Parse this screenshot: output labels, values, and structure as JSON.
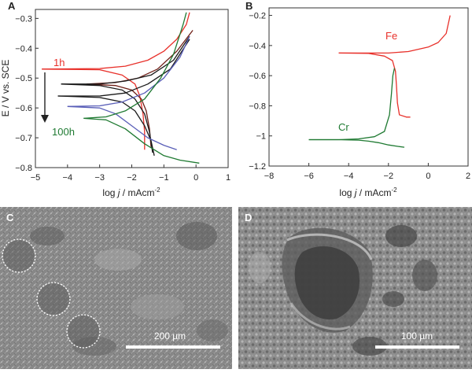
{
  "colors": {
    "red": "#e8302a",
    "black": "#1a1a1a",
    "dark_red": "#6e1e16",
    "blue": "#5a5fb8",
    "green": "#1f7a32",
    "green_bright": "#2e9a3c",
    "sem_bg": "#8a8a8a"
  },
  "chart_data": [
    {
      "panel": "A",
      "type": "line",
      "xlabel_prefix": "log ",
      "xlabel_var": "j",
      "xlabel_suffix": " / mAcm",
      "xlabel_sup": "-2",
      "ylabel": "E / V vs. SCE",
      "xlim": [
        -5,
        1
      ],
      "ylim": [
        -0.8,
        -0.27
      ],
      "xticks": [
        -5,
        -4,
        -3,
        -2,
        -1,
        0,
        1
      ],
      "yticks": [
        -0.8,
        -0.7,
        -0.6,
        -0.5,
        -0.4,
        -0.3
      ],
      "annotations": {
        "start": "1h",
        "end": "100h"
      },
      "series": [
        {
          "color": "red",
          "anodic": [
            [
              -4.8,
              -0.47
            ],
            [
              -3,
              -0.468
            ],
            [
              -2.2,
              -0.46
            ],
            [
              -1.5,
              -0.44
            ],
            [
              -1,
              -0.41
            ],
            [
              -0.6,
              -0.37
            ],
            [
              -0.3,
              -0.32
            ],
            [
              -0.2,
              -0.28
            ]
          ],
          "cathodic": [
            [
              -4.8,
              -0.47
            ],
            [
              -3,
              -0.472
            ],
            [
              -2.3,
              -0.49
            ],
            [
              -1.9,
              -0.52
            ],
            [
              -1.75,
              -0.56
            ],
            [
              -1.65,
              -0.62
            ],
            [
              -1.6,
              -0.68
            ],
            [
              -1.6,
              -0.74
            ]
          ]
        },
        {
          "color": "dark_red",
          "anodic": [
            [
              -3.4,
              -0.52
            ],
            [
              -2.5,
              -0.515
            ],
            [
              -1.8,
              -0.5
            ],
            [
              -1.2,
              -0.47
            ],
            [
              -0.6,
              -0.41
            ],
            [
              -0.1,
              -0.34
            ]
          ],
          "cathodic": [
            [
              -3.4,
              -0.52
            ],
            [
              -2.5,
              -0.525
            ],
            [
              -2,
              -0.54
            ],
            [
              -1.7,
              -0.57
            ],
            [
              -1.55,
              -0.61
            ],
            [
              -1.45,
              -0.67
            ],
            [
              -1.4,
              -0.73
            ]
          ]
        },
        {
          "color": "black",
          "anodic": [
            [
              -4.2,
              -0.52
            ],
            [
              -3,
              -0.52
            ],
            [
              -2.2,
              -0.51
            ],
            [
              -1.4,
              -0.49
            ],
            [
              -0.7,
              -0.44
            ],
            [
              -0.2,
              -0.36
            ]
          ],
          "cathodic": [
            [
              -4.2,
              -0.52
            ],
            [
              -3,
              -0.525
            ],
            [
              -2.3,
              -0.54
            ],
            [
              -1.9,
              -0.57
            ],
            [
              -1.6,
              -0.62
            ],
            [
              -1.45,
              -0.68
            ],
            [
              -1.35,
              -0.75
            ]
          ]
        },
        {
          "color": "black",
          "anodic": [
            [
              -4.3,
              -0.56
            ],
            [
              -3,
              -0.56
            ],
            [
              -2.2,
              -0.55
            ],
            [
              -1.5,
              -0.52
            ],
            [
              -0.8,
              -0.47
            ],
            [
              -0.2,
              -0.37
            ]
          ],
          "cathodic": [
            [
              -4.3,
              -0.56
            ],
            [
              -3,
              -0.565
            ],
            [
              -2.3,
              -0.58
            ],
            [
              -1.9,
              -0.61
            ],
            [
              -1.6,
              -0.66
            ],
            [
              -1.4,
              -0.71
            ],
            [
              -1.3,
              -0.76
            ]
          ]
        },
        {
          "color": "blue",
          "anodic": [
            [
              -4,
              -0.595
            ],
            [
              -3,
              -0.593
            ],
            [
              -2.3,
              -0.58
            ],
            [
              -1.6,
              -0.55
            ],
            [
              -1,
              -0.5
            ],
            [
              -0.5,
              -0.43
            ],
            [
              -0.2,
              -0.36
            ]
          ],
          "cathodic": [
            [
              -4,
              -0.595
            ],
            [
              -3,
              -0.6
            ],
            [
              -2.5,
              -0.62
            ],
            [
              -2,
              -0.66
            ],
            [
              -1.5,
              -0.7
            ],
            [
              -1,
              -0.725
            ],
            [
              -0.6,
              -0.74
            ]
          ]
        },
        {
          "color": "green",
          "anodic": [
            [
              -3.5,
              -0.635
            ],
            [
              -2.8,
              -0.63
            ],
            [
              -2.2,
              -0.61
            ],
            [
              -1.6,
              -0.57
            ],
            [
              -1.1,
              -0.5
            ],
            [
              -0.7,
              -0.42
            ],
            [
              -0.4,
              -0.32
            ],
            [
              -0.3,
              -0.28
            ]
          ],
          "cathodic": [
            [
              -3.5,
              -0.635
            ],
            [
              -2.8,
              -0.64
            ],
            [
              -2.2,
              -0.67
            ],
            [
              -1.6,
              -0.72
            ],
            [
              -1,
              -0.76
            ],
            [
              -0.5,
              -0.775
            ],
            [
              0.1,
              -0.785
            ]
          ]
        }
      ]
    },
    {
      "panel": "B",
      "type": "line",
      "xlabel_prefix": "log ",
      "xlabel_var": "j",
      "xlabel_suffix": " / mAcm",
      "xlabel_sup": "-2",
      "xlim": [
        -8,
        2
      ],
      "ylim": [
        -1.2,
        -0.15
      ],
      "xticks": [
        -8,
        -6,
        -4,
        -2,
        0,
        2
      ],
      "yticks": [
        -1.2,
        -1.0,
        -0.8,
        -0.6,
        -0.4,
        -0.2
      ],
      "series": [
        {
          "name": "Fe",
          "color": "red",
          "anodic": [
            [
              -4.5,
              -0.45
            ],
            [
              -3,
              -0.45
            ],
            [
              -2,
              -0.45
            ],
            [
              -1,
              -0.44
            ],
            [
              0,
              -0.41
            ],
            [
              0.5,
              -0.38
            ],
            [
              0.9,
              -0.32
            ],
            [
              1.1,
              -0.2
            ]
          ],
          "cathodic": [
            [
              -4.5,
              -0.45
            ],
            [
              -3,
              -0.452
            ],
            [
              -2.2,
              -0.47
            ],
            [
              -1.8,
              -0.5
            ],
            [
              -1.65,
              -0.57
            ],
            [
              -1.6,
              -0.66
            ],
            [
              -1.55,
              -0.78
            ],
            [
              -1.45,
              -0.86
            ],
            [
              -1.1,
              -0.875
            ],
            [
              -0.9,
              -0.875
            ]
          ]
        },
        {
          "name": "Cr",
          "color": "green",
          "anodic": [
            [
              -6,
              -1.025
            ],
            [
              -4.5,
              -1.025
            ],
            [
              -3.5,
              -1.02
            ],
            [
              -2.7,
              -1.005
            ],
            [
              -2.2,
              -0.97
            ],
            [
              -1.95,
              -0.86
            ],
            [
              -1.85,
              -0.72
            ],
            [
              -1.78,
              -0.6
            ],
            [
              -1.7,
              -0.55
            ]
          ],
          "cathodic": [
            [
              -6,
              -1.025
            ],
            [
              -4.5,
              -1.025
            ],
            [
              -3.5,
              -1.028
            ],
            [
              -3,
              -1.035
            ],
            [
              -2.5,
              -1.045
            ],
            [
              -2,
              -1.06
            ],
            [
              -1.5,
              -1.07
            ],
            [
              -1.2,
              -1.075
            ]
          ]
        }
      ]
    }
  ],
  "panels": {
    "a_letter": "A",
    "b_letter": "B",
    "c_letter": "C",
    "d_letter": "D"
  },
  "scale_bars": {
    "c": "200 µm",
    "d": "100 µm"
  }
}
